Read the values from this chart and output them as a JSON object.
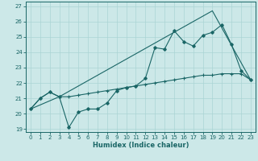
{
  "xlabel": "Humidex (Indice chaleur)",
  "background_color": "#cce8e8",
  "grid_color": "#aad4d4",
  "line_color": "#1a6666",
  "xlim": [
    -0.5,
    23.5
  ],
  "ylim": [
    18.8,
    27.3
  ],
  "xticks": [
    0,
    1,
    2,
    3,
    4,
    5,
    6,
    7,
    8,
    9,
    10,
    11,
    12,
    13,
    14,
    15,
    16,
    17,
    18,
    19,
    20,
    21,
    22,
    23
  ],
  "yticks": [
    19,
    20,
    21,
    22,
    23,
    24,
    25,
    26,
    27
  ],
  "line1_x": [
    0,
    1,
    2,
    3,
    4,
    5,
    6,
    7,
    8,
    9,
    10,
    11,
    12,
    13,
    14,
    15,
    16,
    17,
    18,
    19,
    20,
    21,
    22,
    23
  ],
  "line1_y": [
    20.3,
    21.0,
    21.4,
    21.1,
    19.1,
    20.1,
    20.3,
    20.3,
    20.7,
    21.5,
    21.7,
    21.8,
    22.3,
    24.3,
    24.2,
    25.4,
    24.7,
    24.4,
    25.1,
    25.3,
    25.8,
    24.5,
    22.8,
    22.2
  ],
  "line2_x": [
    0,
    1,
    2,
    3,
    4,
    5,
    6,
    7,
    8,
    9,
    10,
    11,
    12,
    13,
    14,
    15,
    16,
    17,
    18,
    19,
    20,
    21,
    22,
    23
  ],
  "line2_y": [
    20.3,
    21.0,
    21.4,
    21.1,
    21.1,
    21.2,
    21.3,
    21.4,
    21.5,
    21.6,
    21.7,
    21.8,
    21.9,
    22.0,
    22.1,
    22.2,
    22.3,
    22.4,
    22.5,
    22.5,
    22.6,
    22.6,
    22.6,
    22.2
  ],
  "line3_x": [
    0,
    3,
    19,
    23
  ],
  "line3_y": [
    20.3,
    21.1,
    26.7,
    22.2
  ]
}
